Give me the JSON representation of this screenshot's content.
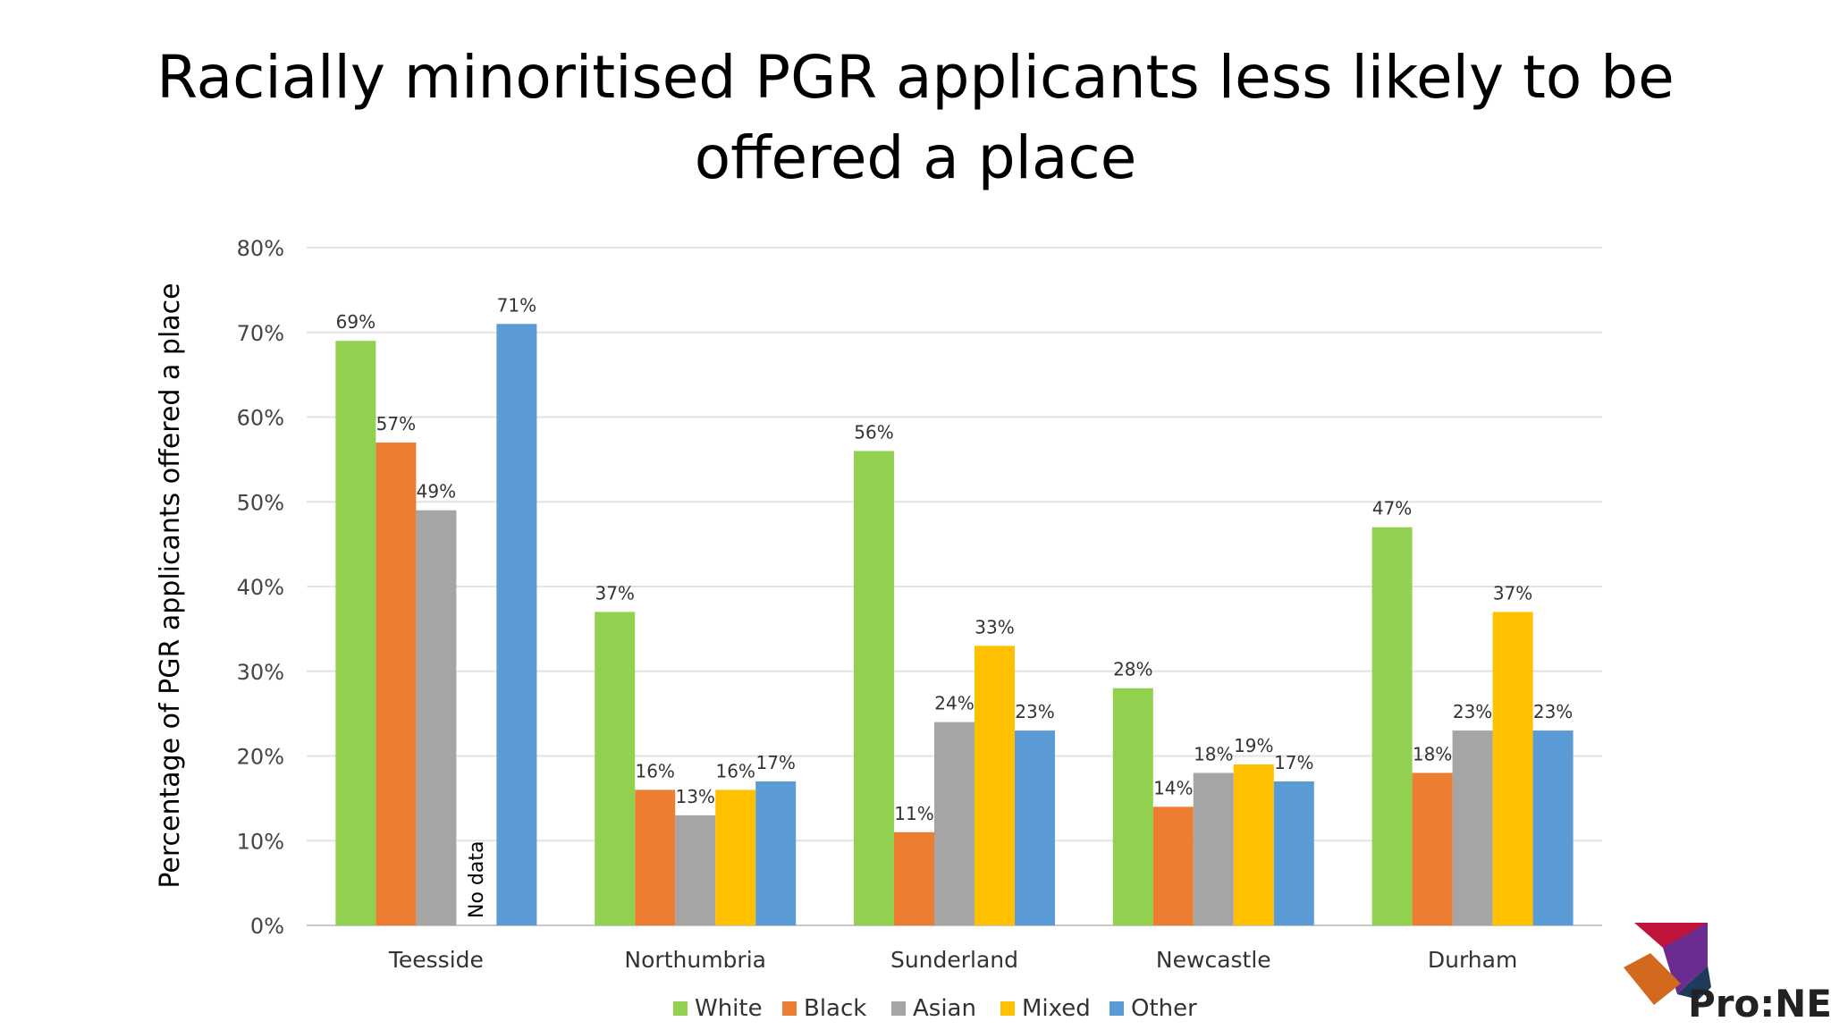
{
  "slide": {
    "title_line1": "Racially minoritised PGR applicants less likely to be",
    "title_line2": "offered a place"
  },
  "chart_data": {
    "type": "bar",
    "categories": [
      "Teesside",
      "Northumbria",
      "Sunderland",
      "Newcastle",
      "Durham"
    ],
    "series": [
      {
        "name": "White",
        "color": "#92d050",
        "values": [
          69,
          37,
          56,
          28,
          47
        ],
        "labels": [
          "69%",
          "37%",
          "56%",
          "28%",
          "47%"
        ]
      },
      {
        "name": "Black",
        "color": "#ed7d31",
        "values": [
          57,
          16,
          11,
          14,
          18
        ],
        "labels": [
          "57%",
          "16%",
          "11%",
          "14%",
          "18%"
        ]
      },
      {
        "name": "Asian",
        "color": "#a5a5a5",
        "values": [
          49,
          13,
          24,
          18,
          23
        ],
        "labels": [
          "49%",
          "13%",
          "24%",
          "18%",
          "23%"
        ]
      },
      {
        "name": "Mixed",
        "color": "#ffc000",
        "values": [
          null,
          16,
          33,
          19,
          37
        ],
        "labels": [
          null,
          "16%",
          "33%",
          "19%",
          "37%"
        ]
      },
      {
        "name": "Other",
        "color": "#5b9bd5",
        "values": [
          71,
          17,
          23,
          17,
          23
        ],
        "labels": [
          "71%",
          "17%",
          "23%",
          "17%",
          "23%"
        ]
      }
    ],
    "annotations": [
      {
        "category": "Teesside",
        "series": "Mixed",
        "text": "No data"
      }
    ],
    "ylabel": "Percentage of PGR applicants offered a place",
    "xlabel": "",
    "ylim": [
      0,
      80
    ],
    "yticks": [
      "0%",
      "10%",
      "20%",
      "30%",
      "40%",
      "50%",
      "60%",
      "70%",
      "80%"
    ],
    "grid": true,
    "legend_position": "bottom"
  },
  "logo": {
    "text": "Pro:NE",
    "colors": [
      "#c0143c",
      "#6a2c91",
      "#1f3b5c",
      "#d2691e",
      "#222222"
    ]
  }
}
